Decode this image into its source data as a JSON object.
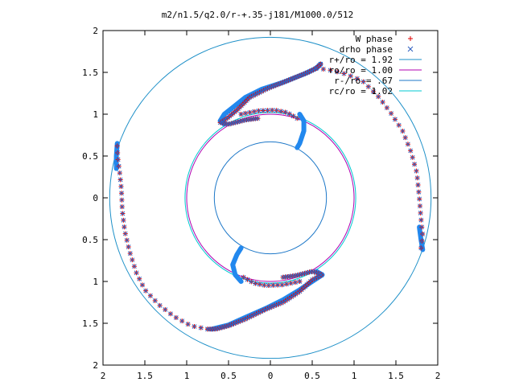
{
  "chart_data": {
    "type": "scatter",
    "title": "m2/n1.5/q2.0/r-+.35-j181/M1000.0/512",
    "xlabel": "",
    "ylabel": "",
    "xlim": [
      -2,
      2
    ],
    "ylim": [
      -2,
      2
    ],
    "x_ticks": [
      "2",
      "1.5",
      "1",
      "0.5",
      "0",
      "0.5",
      "1",
      "1.5",
      "2"
    ],
    "y_ticks": [
      "2",
      "1.5",
      "1",
      "0.5",
      "0",
      "0.5",
      "1",
      "1.5",
      "2"
    ],
    "grid": false,
    "legend_position": "top-right",
    "circles": [
      {
        "name": "r+/ro = 1.92",
        "radius": 1.92,
        "color": "#1e90c8"
      },
      {
        "name": "ro/ro = 1.00",
        "radius": 1.0,
        "color": "#b000b0"
      },
      {
        "name": "r-/ro = .67",
        "radius": 0.67,
        "color": "#1e78c8"
      },
      {
        "name": "rc/ro = 1.02",
        "radius": 1.02,
        "color": "#00c8d0"
      }
    ],
    "series": [
      {
        "name": "W phase",
        "marker": "plus",
        "color": "#e00000",
        "arms": [
          {
            "points": [
              [
                -0.15,
                0.95
              ],
              [
                -0.3,
                0.93
              ],
              [
                -0.5,
                0.88
              ],
              [
                -0.6,
                0.9
              ],
              [
                -0.52,
                0.95
              ],
              [
                -0.4,
                1.05
              ],
              [
                -0.25,
                1.2
              ],
              [
                -0.05,
                1.3
              ],
              [
                0.2,
                1.4
              ],
              [
                0.45,
                1.5
              ],
              [
                0.55,
                1.55
              ],
              [
                0.6,
                1.6
              ]
            ],
            "count": 70
          },
          {
            "points": [
              [
                0.55,
                1.55
              ],
              [
                0.7,
                1.53
              ],
              [
                0.9,
                1.48
              ],
              [
                1.1,
                1.4
              ],
              [
                1.3,
                1.2
              ],
              [
                1.45,
                1.0
              ],
              [
                1.58,
                0.8
              ],
              [
                1.68,
                0.55
              ],
              [
                1.75,
                0.3
              ],
              [
                1.78,
                0.0
              ],
              [
                1.8,
                -0.25
              ],
              [
                1.82,
                -0.45
              ],
              [
                1.8,
                -0.6
              ]
            ],
            "count": 34
          },
          {
            "points": [
              [
                0.15,
                -0.95
              ],
              [
                0.3,
                -0.93
              ],
              [
                0.5,
                -0.88
              ],
              [
                0.62,
                -0.92
              ],
              [
                0.5,
                -0.98
              ],
              [
                0.35,
                -1.12
              ],
              [
                0.15,
                -1.25
              ],
              [
                -0.05,
                -1.33
              ],
              [
                -0.3,
                -1.45
              ],
              [
                -0.5,
                -1.53
              ],
              [
                -0.65,
                -1.57
              ],
              [
                -0.75,
                -1.57
              ]
            ],
            "count": 70
          },
          {
            "points": [
              [
                -0.75,
                -1.57
              ],
              [
                -0.95,
                -1.53
              ],
              [
                -1.15,
                -1.42
              ],
              [
                -1.33,
                -1.28
              ],
              [
                -1.5,
                -1.1
              ],
              [
                -1.6,
                -0.9
              ],
              [
                -1.68,
                -0.65
              ],
              [
                -1.74,
                -0.4
              ],
              [
                -1.77,
                -0.15
              ],
              [
                -1.78,
                0.1
              ],
              [
                -1.8,
                0.3
              ],
              [
                -1.82,
                0.45
              ],
              [
                -1.83,
                0.62
              ]
            ],
            "count": 34
          },
          {
            "points": [
              [
                -0.35,
                1.0
              ],
              [
                -0.15,
                1.04
              ],
              [
                0.05,
                1.05
              ],
              [
                0.2,
                1.02
              ],
              [
                0.32,
                0.95
              ]
            ],
            "count": 14
          },
          {
            "points": [
              [
                0.35,
                -1.0
              ],
              [
                0.15,
                -1.04
              ],
              [
                -0.05,
                -1.05
              ],
              [
                -0.2,
                -1.02
              ],
              [
                -0.32,
                -0.95
              ]
            ],
            "count": 14
          }
        ]
      },
      {
        "name": "drho phase",
        "marker": "cross",
        "color": "#3060c0",
        "arms": [
          {
            "points": [
              [
                -0.15,
                0.95
              ],
              [
                -0.3,
                0.93
              ],
              [
                -0.5,
                0.88
              ],
              [
                -0.6,
                0.9
              ],
              [
                -0.52,
                0.95
              ],
              [
                -0.4,
                1.05
              ],
              [
                -0.25,
                1.2
              ],
              [
                -0.05,
                1.3
              ],
              [
                0.2,
                1.4
              ],
              [
                0.45,
                1.5
              ],
              [
                0.55,
                1.55
              ],
              [
                0.6,
                1.6
              ]
            ],
            "count": 70
          },
          {
            "points": [
              [
                0.55,
                1.55
              ],
              [
                0.7,
                1.53
              ],
              [
                0.9,
                1.48
              ],
              [
                1.1,
                1.4
              ],
              [
                1.3,
                1.2
              ],
              [
                1.45,
                1.0
              ],
              [
                1.58,
                0.8
              ],
              [
                1.68,
                0.55
              ],
              [
                1.75,
                0.3
              ],
              [
                1.78,
                0.0
              ],
              [
                1.8,
                -0.25
              ],
              [
                1.82,
                -0.45
              ],
              [
                1.8,
                -0.6
              ]
            ],
            "count": 34
          },
          {
            "points": [
              [
                0.15,
                -0.95
              ],
              [
                0.3,
                -0.93
              ],
              [
                0.5,
                -0.88
              ],
              [
                0.62,
                -0.92
              ],
              [
                0.5,
                -0.98
              ],
              [
                0.35,
                -1.12
              ],
              [
                0.15,
                -1.25
              ],
              [
                -0.05,
                -1.33
              ],
              [
                -0.3,
                -1.45
              ],
              [
                -0.5,
                -1.53
              ],
              [
                -0.65,
                -1.57
              ],
              [
                -0.75,
                -1.57
              ]
            ],
            "count": 70
          },
          {
            "points": [
              [
                -0.75,
                -1.57
              ],
              [
                -0.95,
                -1.53
              ],
              [
                -1.15,
                -1.42
              ],
              [
                -1.33,
                -1.28
              ],
              [
                -1.5,
                -1.1
              ],
              [
                -1.6,
                -0.9
              ],
              [
                -1.68,
                -0.65
              ],
              [
                -1.74,
                -0.4
              ],
              [
                -1.77,
                -0.15
              ],
              [
                -1.78,
                0.1
              ],
              [
                -1.8,
                0.3
              ],
              [
                -1.82,
                0.45
              ],
              [
                -1.83,
                0.62
              ]
            ],
            "count": 34
          },
          {
            "points": [
              [
                -0.35,
                1.0
              ],
              [
                -0.15,
                1.04
              ],
              [
                0.05,
                1.05
              ],
              [
                0.2,
                1.02
              ],
              [
                0.32,
                0.95
              ]
            ],
            "count": 14
          },
          {
            "points": [
              [
                0.35,
                -1.0
              ],
              [
                0.15,
                -1.04
              ],
              [
                -0.05,
                -1.05
              ],
              [
                -0.2,
                -1.02
              ],
              [
                -0.32,
                -0.95
              ]
            ],
            "count": 14
          }
        ]
      }
    ],
    "dense_bands": {
      "color": "#2288ee",
      "bands": [
        {
          "points": [
            [
              -0.55,
              0.88
            ],
            [
              -0.6,
              0.92
            ],
            [
              -0.55,
              1.0
            ],
            [
              -0.45,
              1.08
            ],
            [
              -0.3,
              1.2
            ],
            [
              -0.1,
              1.3
            ],
            [
              0.15,
              1.38
            ],
            [
              0.4,
              1.48
            ],
            [
              0.55,
              1.55
            ],
            [
              0.6,
              1.6
            ]
          ]
        },
        {
          "points": [
            [
              0.35,
              1.0
            ],
            [
              0.4,
              0.92
            ],
            [
              0.4,
              0.8
            ],
            [
              0.35,
              0.65
            ],
            [
              0.32,
              0.6
            ]
          ]
        },
        {
          "points": [
            [
              0.55,
              -0.88
            ],
            [
              0.62,
              -0.92
            ],
            [
              0.5,
              -1.0
            ],
            [
              0.35,
              -1.1
            ],
            [
              0.15,
              -1.22
            ],
            [
              -0.05,
              -1.32
            ],
            [
              -0.3,
              -1.43
            ],
            [
              -0.5,
              -1.52
            ],
            [
              -0.7,
              -1.57
            ]
          ]
        },
        {
          "points": [
            [
              -0.35,
              -1.0
            ],
            [
              -0.42,
              -0.92
            ],
            [
              -0.45,
              -0.8
            ],
            [
              -0.4,
              -0.68
            ],
            [
              -0.35,
              -0.6
            ]
          ]
        },
        {
          "points": [
            [
              -1.83,
              0.65
            ],
            [
              -1.84,
              0.5
            ],
            [
              -1.84,
              0.35
            ]
          ]
        },
        {
          "points": [
            [
              1.78,
              -0.35
            ],
            [
              1.8,
              -0.5
            ],
            [
              1.82,
              -0.62
            ]
          ]
        }
      ]
    }
  }
}
